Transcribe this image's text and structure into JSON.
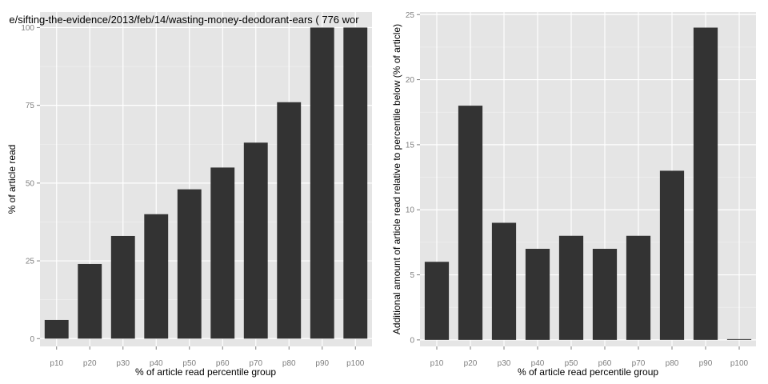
{
  "colors": {
    "panel": "#e5e5e5",
    "grid_major": "#ffffff",
    "grid_minor": "#f2f2f2",
    "bar": "#333333",
    "tick_text": "#7f7f7f"
  },
  "chart_data": [
    {
      "type": "bar",
      "title": "e/sifting-the-evidence/2013/feb/14/wasting-money-deodorant-ears ( 776 wor",
      "xlabel": "% of article read percentile group",
      "ylabel": "% of article read",
      "categories": [
        "p10",
        "p20",
        "p30",
        "p40",
        "p50",
        "p60",
        "p70",
        "p80",
        "p90",
        "p100"
      ],
      "values": [
        6,
        24,
        33,
        40,
        48,
        55,
        63,
        76,
        100,
        100
      ],
      "ylim": [
        -2.5,
        105
      ],
      "yticks": [
        0,
        25,
        50,
        75,
        100
      ],
      "grid": true,
      "legend": "none"
    },
    {
      "type": "bar",
      "title": "",
      "xlabel": "% of article read percentile group",
      "ylabel": "Additional amount of article read relative to percentile below (% of article)",
      "categories": [
        "p10",
        "p20",
        "p30",
        "p40",
        "p50",
        "p60",
        "p70",
        "p80",
        "p90",
        "p100"
      ],
      "values": [
        6,
        18,
        9,
        7,
        8,
        7,
        8,
        13,
        24,
        0
      ],
      "ylim": [
        -0.5,
        25.2
      ],
      "yticks": [
        0,
        5,
        10,
        15,
        20,
        25
      ],
      "grid": true,
      "legend": "none"
    }
  ]
}
